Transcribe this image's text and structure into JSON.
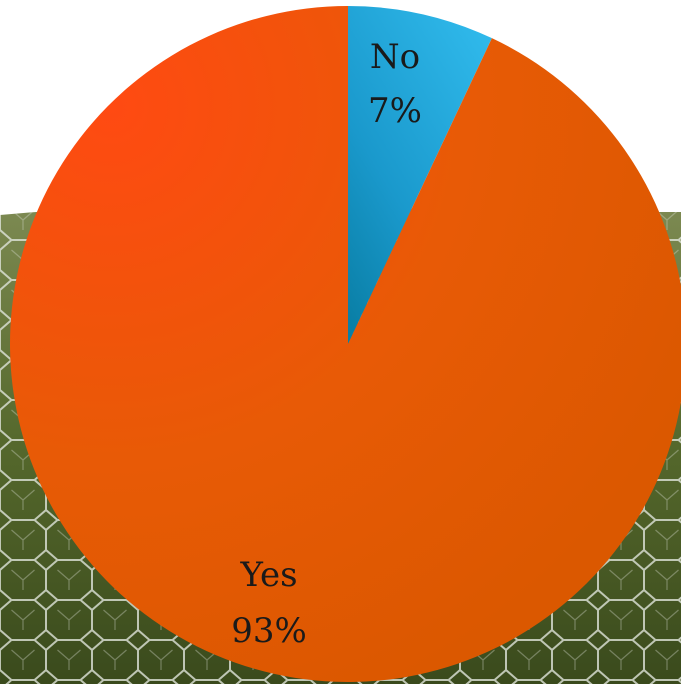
{
  "colors": {
    "background_top": "#ffffff",
    "grass_dark": "#3d4d22",
    "grass_light": "#6f7f3a",
    "wire": "#d8dcd4"
  },
  "chart_data": {
    "type": "pie",
    "title": "",
    "start_angle_deg": 0,
    "direction": "clockwise",
    "slices": [
      {
        "label": "No",
        "value": 7,
        "value_label": "7%",
        "color": "#1a9bd0",
        "color_light": "#2bb4e8"
      },
      {
        "label": "Yes",
        "value": 93,
        "value_label": "93%",
        "color": "#e15a00",
        "color_light": "#f04a10"
      }
    ]
  }
}
